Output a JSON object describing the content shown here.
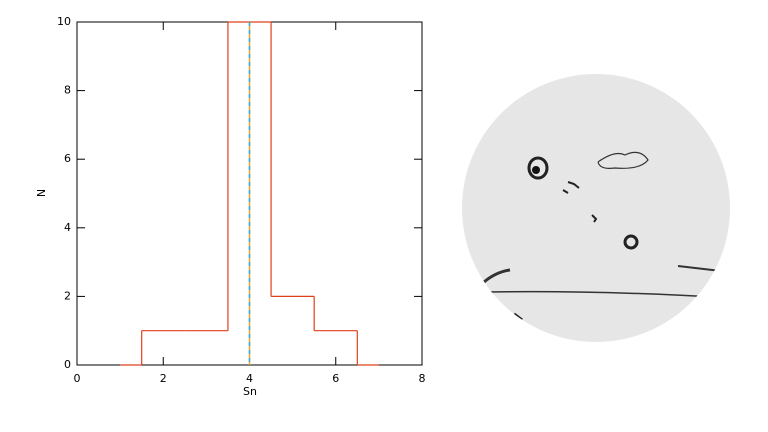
{
  "chart_data": {
    "type": "step",
    "x": [
      1,
      2,
      3,
      4,
      5,
      6,
      7
    ],
    "values": [
      0,
      1,
      1,
      10,
      2,
      1,
      0
    ],
    "color": "#e0401a",
    "xlabel": "Sn",
    "ylabel": "N",
    "xlim": [
      0,
      8
    ],
    "xticks": [
      0,
      2,
      4,
      6,
      8
    ],
    "ylim": [
      0,
      10
    ],
    "yticks": [
      0,
      2,
      4,
      6,
      8,
      10
    ],
    "vline": {
      "x": 4,
      "colors": [
        "#f0a030",
        "#30b0e0"
      ]
    }
  }
}
